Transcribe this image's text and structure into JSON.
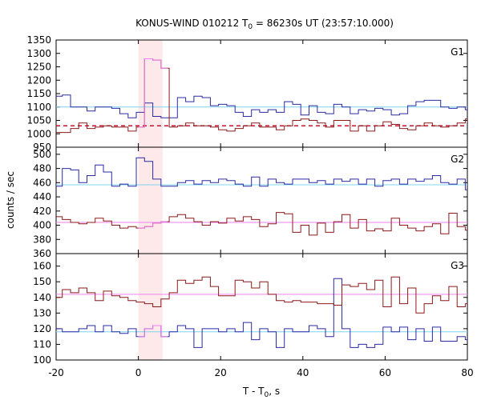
{
  "chart_data": {
    "type": "line",
    "title": {
      "main": "KONUS-WIND 010212 T",
      "sub": "0",
      "rest": " = 86230s UT (23:57:10.000)"
    },
    "xlabel": {
      "main": "T - T",
      "sub": "0",
      "rest": ", s"
    },
    "ylabel": "counts / sec",
    "xlim": [
      -20,
      80
    ],
    "x_ticks": [
      -20,
      0,
      20,
      40,
      60,
      80
    ],
    "shaded_interval": [
      0,
      5.888
    ],
    "colors": {
      "blue": "#2b2ba3",
      "red": "#8b1a1a",
      "blue_bg": "#7fd4f0",
      "red_bg": "#ee82ee",
      "red_bg_g1": "#c8102e",
      "shade": "#fde8ea",
      "pink_step": "#ee82ee"
    },
    "panels": [
      {
        "name": "G1",
        "ylim": [
          950,
          1350
        ],
        "y_ticks": [
          950,
          1000,
          1050,
          1100,
          1150,
          1200,
          1250,
          1300,
          1350
        ],
        "x": [
          -20.5,
          -18.5,
          -16.5,
          -14.5,
          -12.5,
          -10.5,
          -8.5,
          -6.5,
          -4.5,
          -2.5,
          -0.5,
          1.5,
          3.5,
          5.5,
          7.5,
          9.5,
          11.5,
          13.5,
          15.5,
          17.5,
          19.5,
          21.5,
          23.5,
          25.5,
          27.5,
          29.5,
          31.5,
          33.5,
          35.5,
          37.5,
          39.5,
          41.5,
          43.5,
          45.5,
          47.5,
          49.5,
          51.5,
          53.5,
          55.5,
          57.5,
          59.5,
          61.5,
          63.5,
          65.5,
          67.5,
          69.5,
          71.5,
          73.5,
          75.5,
          77.5,
          79.5
        ],
        "series": [
          {
            "values": [
              1140,
              1145,
              1100,
              1100,
              1085,
              1100,
              1100,
              1095,
              1075,
              1060,
              1080,
              1115,
              1065,
              1060,
              1060,
              1135,
              1120,
              1140,
              1135,
              1105,
              1110,
              1105,
              1080,
              1065,
              1090,
              1080,
              1090,
              1080,
              1120,
              1110,
              1070,
              1105,
              1080,
              1075,
              1110,
              1100,
              1075,
              1090,
              1085,
              1095,
              1090,
              1070,
              1075,
              1105,
              1120,
              1125,
              1125,
              1100,
              1095,
              1100,
              1090
            ]
          },
          {
            "values": [
              1005,
              1005,
              1020,
              1040,
              1020,
              1025,
              1030,
              1025,
              1025,
              1010,
              1025,
              1280,
              1275,
              1245,
              1025,
              1030,
              1040,
              1030,
              1030,
              1025,
              1015,
              1010,
              1020,
              1030,
              1040,
              1025,
              1025,
              1015,
              1030,
              1050,
              1055,
              1050,
              1040,
              1025,
              1050,
              1050,
              1010,
              1030,
              1010,
              1030,
              1045,
              1035,
              1020,
              1015,
              1030,
              1040,
              1030,
              1025,
              1030,
              1040,
              1055
            ]
          }
        ],
        "background": [
          1100,
          1030
        ]
      },
      {
        "name": "G2",
        "ylim": [
          360,
          510
        ],
        "y_ticks": [
          360,
          380,
          400,
          420,
          440,
          460,
          480,
          500
        ],
        "x": [
          -20.5,
          -18.5,
          -16.5,
          -14.5,
          -12.5,
          -10.5,
          -8.5,
          -6.5,
          -4.5,
          -2.5,
          -0.5,
          1.5,
          3.5,
          5.5,
          7.5,
          9.5,
          11.5,
          13.5,
          15.5,
          17.5,
          19.5,
          21.5,
          23.5,
          25.5,
          27.5,
          29.5,
          31.5,
          33.5,
          35.5,
          37.5,
          39.5,
          41.5,
          43.5,
          45.5,
          47.5,
          49.5,
          51.5,
          53.5,
          55.5,
          57.5,
          59.5,
          61.5,
          63.5,
          65.5,
          67.5,
          69.5,
          71.5,
          73.5,
          75.5,
          77.5,
          79.5
        ],
        "series": [
          {
            "values": [
              455,
              480,
              478,
              460,
              470,
              485,
              475,
              455,
              458,
              455,
              495,
              490,
              465,
              455,
              455,
              460,
              463,
              458,
              463,
              460,
              465,
              463,
              458,
              455,
              468,
              455,
              465,
              460,
              458,
              465,
              465,
              460,
              463,
              458,
              465,
              462,
              465,
              458,
              465,
              455,
              463,
              465,
              458,
              465,
              462,
              465,
              470,
              460,
              458,
              465,
              450
            ]
          },
          {
            "values": [
              412,
              408,
              404,
              402,
              404,
              410,
              406,
              400,
              396,
              398,
              396,
              398,
              403,
              405,
              412,
              415,
              410,
              405,
              400,
              405,
              403,
              410,
              406,
              412,
              408,
              398,
              402,
              418,
              416,
              390,
              400,
              386,
              403,
              390,
              405,
              415,
              396,
              408,
              392,
              395,
              392,
              410,
              400,
              396,
              392,
              398,
              402,
              388,
              417,
              398,
              393
            ]
          }
        ],
        "background": [
          457,
          404
        ]
      },
      {
        "name": "G3",
        "ylim": [
          100,
          168
        ],
        "y_ticks": [
          100,
          110,
          120,
          130,
          140,
          150,
          160
        ],
        "x": [
          -20.5,
          -18.5,
          -16.5,
          -14.5,
          -12.5,
          -10.5,
          -8.5,
          -6.5,
          -4.5,
          -2.5,
          -0.5,
          1.5,
          3.5,
          5.5,
          7.5,
          9.5,
          11.5,
          13.5,
          15.5,
          17.5,
          19.5,
          21.5,
          23.5,
          25.5,
          27.5,
          29.5,
          31.5,
          33.5,
          35.5,
          37.5,
          39.5,
          41.5,
          43.5,
          45.5,
          47.5,
          49.5,
          51.5,
          53.5,
          55.5,
          57.5,
          59.5,
          61.5,
          63.5,
          65.5,
          67.5,
          69.5,
          71.5,
          73.5,
          75.5,
          77.5,
          79.5
        ],
        "series": [
          {
            "values": [
              120,
              118,
              118,
              120,
              122,
              118,
              122,
              118,
              117,
              120,
              115,
              120,
              122,
              115,
              118,
              122,
              120,
              108,
              120,
              120,
              118,
              120,
              118,
              124,
              113,
              120,
              118,
              108,
              120,
              118,
              118,
              122,
              120,
              115,
              152,
              120,
              108,
              110,
              108,
              110,
              121,
              118,
              121,
              113,
              120,
              112,
              121,
              112,
              112,
              115,
              113
            ]
          },
          {
            "values": [
              140,
              145,
              143,
              146,
              143,
              138,
              144,
              141,
              140,
              138,
              137,
              136,
              134,
              139,
              143,
              151,
              149,
              151,
              153,
              147,
              141,
              141,
              151,
              150,
              146,
              150,
              142,
              138,
              137,
              138,
              137,
              137,
              136,
              136,
              135,
              148,
              147,
              149,
              145,
              151,
              134,
              153,
              136,
              146,
              130,
              136,
              141,
              138,
              147,
              134,
              136
            ]
          }
        ],
        "background": [
          118,
          142
        ]
      }
    ]
  }
}
